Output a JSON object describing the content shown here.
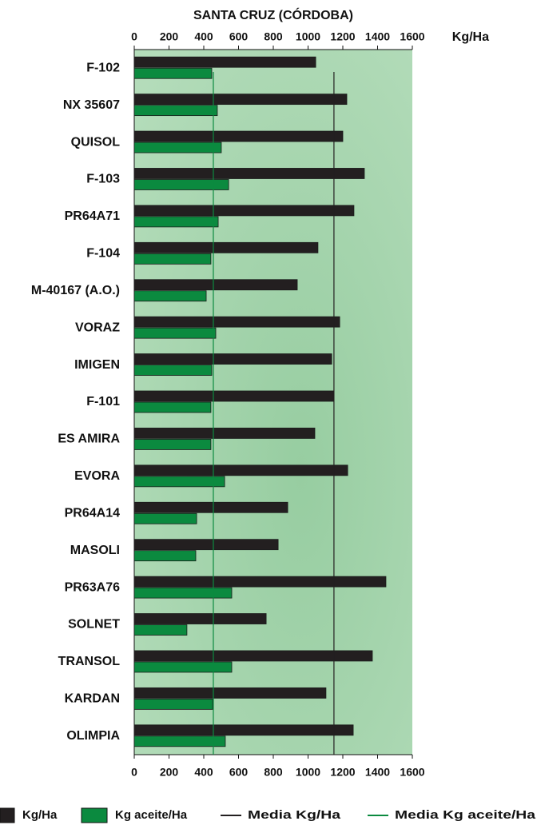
{
  "chart_data": {
    "type": "bar",
    "orientation": "horizontal",
    "title": "SANTA CRUZ (CÓRDOBA)",
    "x_label": "Kg/Ha",
    "categories": [
      "F-102",
      "NX 35607",
      "QUISOL",
      "F-103",
      "PR64A71",
      "F-104",
      "M-40167 (A.O.)",
      "VORAZ",
      "IMIGEN",
      "F-101",
      "ES AMIRA",
      "EVORA",
      "PR64A14",
      "MASOLI",
      "PR63A76",
      "SOLNET",
      "TRANSOL",
      "KARDAN",
      "OLIMPIA"
    ],
    "series": [
      {
        "name": "Kg/Ha",
        "color": "#231f20",
        "values": [
          1044,
          1223,
          1200,
          1324,
          1264,
          1057,
          938,
          1182,
          1136,
          1149,
          1039,
          1228,
          883,
          828,
          1448,
          759,
          1370,
          1103,
          1260
        ]
      },
      {
        "name": "Kg aceite/Ha",
        "color": "#0b8a3f",
        "values": [
          446,
          478,
          501,
          543,
          483,
          441,
          414,
          469,
          446,
          441,
          441,
          520,
          359,
          354,
          561,
          303,
          561,
          451,
          524
        ]
      }
    ],
    "mean_lines": [
      {
        "name": "Media Kg/Ha",
        "color": "#231f20",
        "value": 1149
      },
      {
        "name": "Media Kg aceite/Ha",
        "color": "#0b8a3f",
        "value": 455
      }
    ],
    "xlim": [
      0,
      1600
    ],
    "xticks": [
      0,
      200,
      400,
      600,
      800,
      1000,
      1200,
      1400,
      1600
    ],
    "background": "#a9d6b0"
  }
}
